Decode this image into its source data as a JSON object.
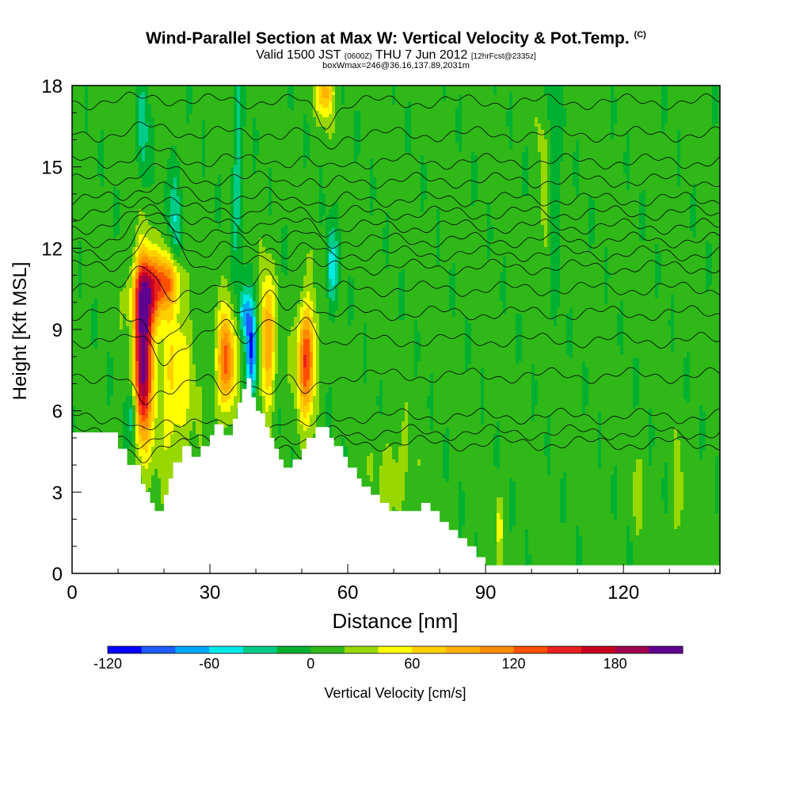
{
  "header": {
    "title": "Wind-Parallel Section at Max W: Vertical Velocity & Pot.Temp.",
    "copyright": "(C)",
    "valid_prefix": "Valid 1500 JST",
    "valid_utc": "(0600Z)",
    "valid_date": "THU 7 Jun 2012",
    "forecast": "[12hrFcst@2335z]",
    "box_info": "boxWmax=246@36.16,137.89,2031m"
  },
  "chart_data": {
    "type": "heatmap",
    "xlabel": "Distance [nm]",
    "ylabel": "Height [Kft MSL]",
    "xlim": [
      0,
      141
    ],
    "ylim": [
      0,
      18
    ],
    "x_ticks": [
      0,
      30,
      60,
      90,
      120
    ],
    "y_ticks": [
      0,
      3,
      6,
      9,
      12,
      15,
      18
    ],
    "colorbar": {
      "label": "Vertical Velocity [cm/s]",
      "ticks": [
        -120,
        -60,
        0,
        60,
        120,
        180
      ],
      "range": [
        -120,
        220
      ],
      "colors": [
        "#0000ff",
        "#1e5cff",
        "#00a8ff",
        "#00e8e8",
        "#00cc88",
        "#00b030",
        "#30b818",
        "#98d800",
        "#ffff00",
        "#ffd000",
        "#ffb000",
        "#ff8c00",
        "#ff5000",
        "#e82020",
        "#c80020",
        "#a00050",
        "#600090"
      ]
    },
    "terrain_kft": [
      [
        0,
        5.2
      ],
      [
        6,
        5.2
      ],
      [
        10,
        4.6
      ],
      [
        12,
        4.0
      ],
      [
        15,
        3.3
      ],
      [
        16,
        3.0
      ],
      [
        17,
        2.6
      ],
      [
        18,
        2.3
      ],
      [
        20,
        2.9
      ],
      [
        21,
        3.5
      ],
      [
        22,
        4.1
      ],
      [
        24,
        4.7
      ],
      [
        26,
        4.3
      ],
      [
        28,
        4.7
      ],
      [
        30,
        5.1
      ],
      [
        31,
        5.5
      ],
      [
        33,
        5.1
      ],
      [
        35,
        5.7
      ],
      [
        36,
        6.3
      ],
      [
        37,
        6.8
      ],
      [
        38,
        7.2
      ],
      [
        39,
        6.5
      ],
      [
        40,
        6.0
      ],
      [
        41,
        5.9
      ],
      [
        42,
        5.4
      ],
      [
        43,
        5.0
      ],
      [
        44,
        4.6
      ],
      [
        45,
        4.2
      ],
      [
        46,
        3.9
      ],
      [
        48,
        4.2
      ],
      [
        50,
        4.6
      ],
      [
        51,
        5.0
      ],
      [
        53,
        5.4
      ],
      [
        55,
        5.4
      ],
      [
        56,
        5.0
      ],
      [
        57,
        4.7
      ],
      [
        59,
        4.3
      ],
      [
        60,
        3.9
      ],
      [
        62,
        3.5
      ],
      [
        63,
        3.2
      ],
      [
        65,
        2.9
      ],
      [
        67,
        2.6
      ],
      [
        69,
        2.3
      ],
      [
        74,
        2.3
      ],
      [
        76,
        2.6
      ],
      [
        78,
        2.3
      ],
      [
        80,
        1.9
      ],
      [
        82,
        1.6
      ],
      [
        84,
        1.3
      ],
      [
        86,
        1.0
      ],
      [
        88,
        0.6
      ],
      [
        90,
        0.3
      ],
      [
        141,
        0.3
      ]
    ],
    "updrafts": [
      {
        "x": 15.5,
        "z": 8.0,
        "sx": 1.3,
        "sz": 2.1,
        "w": 210
      },
      {
        "x": 16.5,
        "z": 10.4,
        "sx": 2.2,
        "sz": 0.9,
        "w": 130
      },
      {
        "x": 21.0,
        "z": 10.8,
        "sx": 2.0,
        "sz": 0.7,
        "w": 90
      },
      {
        "x": 22.0,
        "z": 7.0,
        "sx": 2.8,
        "sz": 2.2,
        "w": 55
      },
      {
        "x": 33.5,
        "z": 7.8,
        "sx": 1.4,
        "sz": 1.3,
        "w": 120
      },
      {
        "x": 42.5,
        "z": 8.5,
        "sx": 1.1,
        "sz": 1.7,
        "w": 95
      },
      {
        "x": 51.0,
        "z": 7.9,
        "sx": 1.4,
        "sz": 1.4,
        "w": 135
      },
      {
        "x": 55.0,
        "z": 17.8,
        "sx": 1.3,
        "sz": 0.7,
        "w": 80
      },
      {
        "x": 39.0,
        "z": 8.2,
        "sx": 0.8,
        "sz": 1.3,
        "w": -110
      },
      {
        "x": 37.5,
        "z": 9.6,
        "sx": 0.8,
        "sz": 0.6,
        "w": -60
      },
      {
        "x": 13.0,
        "z": 5.8,
        "sx": 0.6,
        "sz": 0.7,
        "w": -55
      },
      {
        "x": 22.5,
        "z": 13.0,
        "sx": 0.8,
        "sz": 1.8,
        "w": -50
      },
      {
        "x": 15.5,
        "z": 16.3,
        "sx": 0.8,
        "sz": 1.6,
        "w": -40
      },
      {
        "x": 56.5,
        "z": 11.3,
        "sx": 0.9,
        "sz": 1.1,
        "w": -55
      },
      {
        "x": 36.0,
        "z": 14.8,
        "sx": 0.9,
        "sz": 3.0,
        "w": -35
      },
      {
        "x": 104.5,
        "z": 15.0,
        "sx": 1.0,
        "sz": 3.0,
        "w": -30
      },
      {
        "x": 93.0,
        "z": 1.8,
        "sx": 0.5,
        "sz": 0.8,
        "w": 40
      },
      {
        "x": 103.0,
        "z": 14.0,
        "sx": 0.9,
        "sz": 2.0,
        "w": 35
      },
      {
        "x": 70.0,
        "z": 3.6,
        "sx": 2.5,
        "sz": 1.2,
        "w": 25
      },
      {
        "x": 132.0,
        "z": 2.5,
        "sx": 1.0,
        "sz": 1.2,
        "w": 25
      },
      {
        "x": 123.0,
        "z": 2.8,
        "sx": 0.8,
        "sz": 1.0,
        "w": 20
      }
    ],
    "isentropes_kft": [
      4.8,
      5.2,
      5.8,
      7.3,
      8.6,
      9.6,
      10.5,
      11.3,
      11.8,
      12.3,
      12.8,
      13.3,
      13.8,
      14.5,
      15.2,
      16.2,
      17.4
    ]
  }
}
